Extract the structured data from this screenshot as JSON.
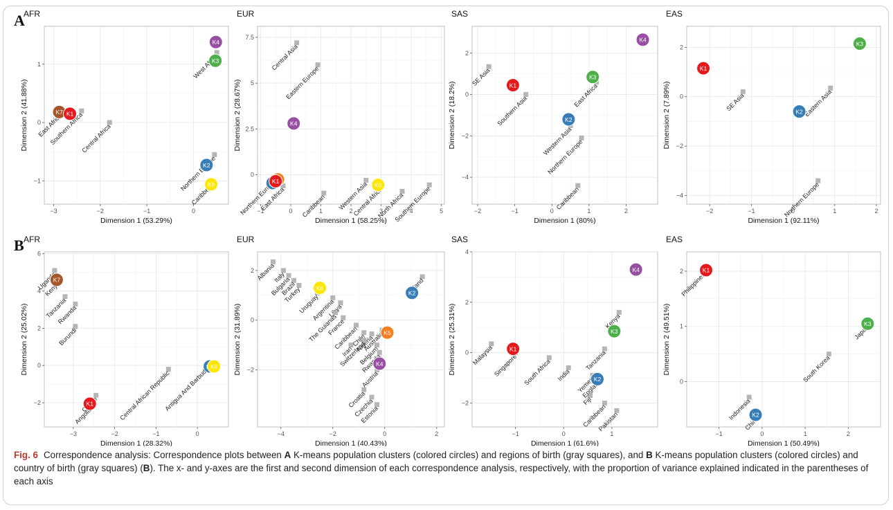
{
  "panel_letters": {
    "A": "A",
    "B": "B"
  },
  "caption": {
    "fig_label": "Fig. 6",
    "p1": "Correspondence analysis: Correspondence plots between ",
    "A": "A",
    "p2": " K-means population clusters (colored circles) and regions of birth (gray squares), and ",
    "B": "B",
    "p3": " K-means population clusters (colored circles) and country of birth (gray squares) (",
    "B2": "B",
    "p4": "). The x- and y-axes are the first and second dimension of each correspondence analysis, respectively, with the proportion of variance explained indicated in the parentheses of each axis"
  },
  "colors": {
    "gray_square": "#b5b5b5",
    "K1": "#e41a1c",
    "K2": "#377eb8",
    "K3": "#4daf4a",
    "K4": "#984ea3",
    "orange": "#f57e20",
    "yellow": "#ffe600",
    "brown": "#a65628"
  },
  "chart_data": [
    {
      "type": "scatter",
      "row": "A",
      "title": "AFR",
      "xlabel": "Dimension 1 (53.29%)",
      "ylabel": "Dimension 2 (41.88%)",
      "xlim": [
        -3.2,
        0.75
      ],
      "ylim": [
        -1.4,
        1.65
      ],
      "xticks": [
        -3,
        -2,
        -1,
        0
      ],
      "yticks": [
        -1,
        0,
        1
      ],
      "squares": [
        {
          "label": "East Africa",
          "x": -2.85,
          "y": 0.18
        },
        {
          "label": "Southern Africa",
          "x": -2.4,
          "y": 0.2
        },
        {
          "label": "Central Africa",
          "x": -1.8,
          "y": 0.0
        },
        {
          "label": "West Africa",
          "x": 0.5,
          "y": 1.2
        },
        {
          "label": "Northern Europe",
          "x": 0.45,
          "y": -0.55
        },
        {
          "label": "Caribbean",
          "x": 0.42,
          "y": -1.0
        }
      ],
      "clusters": [
        {
          "label": "K7",
          "color": "#a65628",
          "x": -2.88,
          "y": 0.18
        },
        {
          "label": "K1",
          "color": "#e41a1c",
          "x": -2.65,
          "y": 0.15
        },
        {
          "label": "K4",
          "color": "#984ea3",
          "x": 0.48,
          "y": 1.38
        },
        {
          "label": "K3",
          "color": "#4daf4a",
          "x": 0.47,
          "y": 1.06
        },
        {
          "label": "K2",
          "color": "#377eb8",
          "x": 0.28,
          "y": -0.73
        },
        {
          "label": "K6",
          "color": "#ffe600",
          "x": 0.38,
          "y": -1.06
        }
      ]
    },
    {
      "type": "scatter",
      "row": "A",
      "title": "EUR",
      "xlabel": "Dimension 1 (58.25%)",
      "ylabel": "Dimension 2 (28.67%)",
      "xlim": [
        -1.1,
        5.1
      ],
      "ylim": [
        -1.6,
        8.1
      ],
      "xticks": [
        -1,
        0,
        1,
        2,
        3,
        4,
        5
      ],
      "yticks": [
        0.0,
        2.5,
        5.0,
        7.5
      ],
      "squares": [
        {
          "label": "Central Asia",
          "x": 0.2,
          "y": 7.2
        },
        {
          "label": "Eastern Europe",
          "x": 0.9,
          "y": 6.0
        },
        {
          "label": "Northern Europe",
          "x": -0.55,
          "y": -0.2
        },
        {
          "label": "East Africa",
          "x": -0.25,
          "y": -0.6
        },
        {
          "label": "Caribbean",
          "x": 1.1,
          "y": -1.0
        },
        {
          "label": "Western Asia",
          "x": 2.5,
          "y": -0.3
        },
        {
          "label": "Central Africa",
          "x": 3.0,
          "y": -0.6
        },
        {
          "label": "North Africa",
          "x": 3.7,
          "y": -0.9
        },
        {
          "label": "Southern Europe",
          "x": 4.6,
          "y": -0.55
        }
      ],
      "clusters": [
        {
          "label": "K4",
          "color": "#984ea3",
          "x": 0.1,
          "y": 2.8
        },
        {
          "label": "K2",
          "color": "#377eb8",
          "x": -0.6,
          "y": -0.45
        },
        {
          "label": "K5",
          "color": "#f57e20",
          "x": -0.42,
          "y": -0.25
        },
        {
          "label": "K1",
          "color": "#e41a1c",
          "x": -0.5,
          "y": -0.35
        },
        {
          "label": "K6",
          "color": "#ffe600",
          "x": 2.9,
          "y": -0.55
        }
      ]
    },
    {
      "type": "scatter",
      "row": "A",
      "title": "SAS",
      "xlabel": "Dimension 1 (80%)",
      "ylabel": "Dimension 2 (18.2%)",
      "xlim": [
        -2.15,
        2.85
      ],
      "ylim": [
        -5.3,
        3.3
      ],
      "xticks": [
        -2,
        -1,
        0,
        1,
        2
      ],
      "yticks": [
        -4,
        -2,
        0,
        2
      ],
      "squares": [
        {
          "label": "SE Asia",
          "x": -1.7,
          "y": 1.35
        },
        {
          "label": "Southern Asia",
          "x": -0.7,
          "y": 0.0
        },
        {
          "label": "East Africa",
          "x": 1.2,
          "y": 0.6
        },
        {
          "label": "Western Asia",
          "x": 0.5,
          "y": -1.5
        },
        {
          "label": "Northern Europe",
          "x": 0.8,
          "y": -2.1
        },
        {
          "label": "Caribbean",
          "x": 0.7,
          "y": -4.4
        }
      ],
      "clusters": [
        {
          "label": "K4",
          "color": "#984ea3",
          "x": 2.45,
          "y": 2.65
        },
        {
          "label": "K1",
          "color": "#e41a1c",
          "x": -1.05,
          "y": 0.45
        },
        {
          "label": "K3",
          "color": "#4daf4a",
          "x": 1.1,
          "y": 0.85
        },
        {
          "label": "K2",
          "color": "#377eb8",
          "x": 0.45,
          "y": -1.2
        }
      ]
    },
    {
      "type": "scatter",
      "row": "A",
      "title": "EAS",
      "xlabel": "Dimension 1 (92.11%)",
      "ylabel": "Dimension 2 (7.89%)",
      "xlim": [
        -2.55,
        2.1
      ],
      "ylim": [
        -4.35,
        2.85
      ],
      "xticks": [
        -2,
        -1,
        0,
        1,
        2
      ],
      "yticks": [
        -4,
        -2,
        0,
        2
      ],
      "squares": [
        {
          "label": "SE Asia",
          "x": -1.2,
          "y": 0.2
        },
        {
          "label": "Eastern Asia",
          "x": 0.9,
          "y": 0.35
        },
        {
          "label": "Northern Europe",
          "x": 0.6,
          "y": -3.4
        }
      ],
      "clusters": [
        {
          "label": "K1",
          "color": "#e41a1c",
          "x": -2.15,
          "y": 1.15
        },
        {
          "label": "K3",
          "color": "#4daf4a",
          "x": 1.6,
          "y": 2.15
        },
        {
          "label": "K2",
          "color": "#377eb8",
          "x": 0.15,
          "y": -0.6
        }
      ]
    },
    {
      "type": "scatter",
      "row": "B",
      "title": "AFR",
      "xlabel": "Dimension 1 (28.32%)",
      "ylabel": "Dimension 2 (25.02%)",
      "xlim": [
        -3.7,
        0.75
      ],
      "ylim": [
        -3.3,
        6.1
      ],
      "xticks": [
        -3,
        -2,
        -1,
        0
      ],
      "yticks": [
        -2,
        0,
        2,
        4,
        6
      ],
      "squares": [
        {
          "label": "Uganda",
          "x": -3.45,
          "y": 5.1
        },
        {
          "label": "Kenya",
          "x": -3.35,
          "y": 4.6
        },
        {
          "label": "Tanzania",
          "x": -3.2,
          "y": 3.7
        },
        {
          "label": "Rwanda",
          "x": -2.95,
          "y": 3.3
        },
        {
          "label": "Burundi",
          "x": -2.95,
          "y": 2.1
        },
        {
          "label": "Central African Republic",
          "x": -0.7,
          "y": -0.2
        },
        {
          "label": "Antigua And Barbuda",
          "x": 0.25,
          "y": 0.0
        },
        {
          "label": "Congo",
          "x": -2.45,
          "y": -1.6
        },
        {
          "label": "Angola",
          "x": -2.6,
          "y": -2.2
        }
      ],
      "clusters": [
        {
          "label": "K7",
          "color": "#a65628",
          "x": -3.4,
          "y": 4.6
        },
        {
          "label": "K2",
          "color": "#377eb8",
          "x": 0.3,
          "y": -0.05
        },
        {
          "label": "K6",
          "color": "#ffe600",
          "x": 0.4,
          "y": -0.05
        },
        {
          "label": "K1",
          "color": "#e41a1c",
          "x": -2.6,
          "y": -2.05
        }
      ]
    },
    {
      "type": "scatter",
      "row": "B",
      "title": "EUR",
      "xlabel": "Dimension 1 (40.43%)",
      "ylabel": "Dimension 2 (31.89%)",
      "xlim": [
        -4.9,
        2.3
      ],
      "ylim": [
        -4.3,
        2.75
      ],
      "xticks": [
        -4,
        -2,
        0,
        2
      ],
      "yticks": [
        -2,
        0,
        2
      ],
      "squares": [
        {
          "label": "Albania",
          "x": -4.3,
          "y": 2.35
        },
        {
          "label": "Italy",
          "x": -3.9,
          "y": 2.0
        },
        {
          "label": "Bulgaria",
          "x": -3.7,
          "y": 1.8
        },
        {
          "label": "Brazil",
          "x": -3.5,
          "y": 1.6
        },
        {
          "label": "Turkey",
          "x": -3.3,
          "y": 1.4
        },
        {
          "label": "Uruguay",
          "x": -2.6,
          "y": 1.1
        },
        {
          "label": "Argentina",
          "x": -2.0,
          "y": 0.9
        },
        {
          "label": "Libya",
          "x": -1.7,
          "y": 0.7
        },
        {
          "label": "The Guianas",
          "x": -1.9,
          "y": 0.3
        },
        {
          "label": "France",
          "x": -1.6,
          "y": 0.1
        },
        {
          "label": "Caribbean",
          "x": -1.1,
          "y": -0.2
        },
        {
          "label": "Chile",
          "x": -0.8,
          "y": -0.5
        },
        {
          "label": "Nigeria",
          "x": -0.5,
          "y": -0.55
        },
        {
          "label": "Iran",
          "x": -1.3,
          "y": -1.0
        },
        {
          "label": "Switzerland",
          "x": -0.8,
          "y": -0.8
        },
        {
          "label": "Australia",
          "x": -0.1,
          "y": -0.4
        },
        {
          "label": "Belgium",
          "x": -0.3,
          "y": -1.0
        },
        {
          "label": "Rwanda",
          "x": -0.2,
          "y": -1.3
        },
        {
          "label": "Austria",
          "x": -0.3,
          "y": -2.0
        },
        {
          "label": "Croatia",
          "x": -0.8,
          "y": -2.8
        },
        {
          "label": "Czechia",
          "x": -0.5,
          "y": -3.1
        },
        {
          "label": "Estonia",
          "x": -0.3,
          "y": -3.4
        },
        {
          "label": "Finland",
          "x": 1.45,
          "y": 1.75
        }
      ],
      "clusters": [
        {
          "label": "K6",
          "color": "#ffe600",
          "x": -2.5,
          "y": 1.3
        },
        {
          "label": "K2",
          "color": "#377eb8",
          "x": 1.05,
          "y": 1.1
        },
        {
          "label": "K5",
          "color": "#f57e20",
          "x": 0.1,
          "y": -0.5
        },
        {
          "label": "K4",
          "color": "#984ea3",
          "x": -0.2,
          "y": -1.75
        }
      ]
    },
    {
      "type": "scatter",
      "row": "B",
      "title": "SAS",
      "xlabel": "Dimension 1 (61.6%)",
      "ylabel": "Dimension 2 (25.31%)",
      "xlim": [
        -1.9,
        1.95
      ],
      "ylim": [
        -2.95,
        4.0
      ],
      "xticks": [
        -1,
        0,
        1
      ],
      "yticks": [
        -2,
        0,
        2,
        4
      ],
      "squares": [
        {
          "label": "Malaysia",
          "x": -1.5,
          "y": 0.35
        },
        {
          "label": "Singapore",
          "x": -1.0,
          "y": 0.0
        },
        {
          "label": "South Africa",
          "x": -0.3,
          "y": -0.2
        },
        {
          "label": "India",
          "x": 0.1,
          "y": -0.6
        },
        {
          "label": "Kenya",
          "x": 1.15,
          "y": 1.6
        },
        {
          "label": "Tanzania",
          "x": 0.85,
          "y": 0.15
        },
        {
          "label": "Yemen",
          "x": 0.6,
          "y": -0.9
        },
        {
          "label": "Fiji",
          "x": 0.55,
          "y": -1.7
        },
        {
          "label": "England",
          "x": 0.75,
          "y": -1.0
        },
        {
          "label": "Caribbean",
          "x": 0.85,
          "y": -2.0
        },
        {
          "label": "Pakistan",
          "x": 1.1,
          "y": -2.3
        }
      ],
      "clusters": [
        {
          "label": "K4",
          "color": "#984ea3",
          "x": 1.5,
          "y": 3.3
        },
        {
          "label": "K3",
          "color": "#4daf4a",
          "x": 1.05,
          "y": 0.85
        },
        {
          "label": "K1",
          "color": "#e41a1c",
          "x": -1.05,
          "y": 0.15
        },
        {
          "label": "K2",
          "color": "#377eb8",
          "x": 0.7,
          "y": -1.05
        }
      ]
    },
    {
      "type": "scatter",
      "row": "B",
      "title": "EAS",
      "xlabel": "Dimension 1 (50.49%)",
      "ylabel": "Dimension 2 (49.51%)",
      "xlim": [
        -1.75,
        2.75
      ],
      "ylim": [
        -0.82,
        2.35
      ],
      "xticks": [
        -1,
        0,
        1,
        2
      ],
      "yticks": [
        0,
        1,
        2
      ],
      "squares": [
        {
          "label": "Philippines",
          "x": -1.35,
          "y": 2.0
        },
        {
          "label": "Japan",
          "x": 2.45,
          "y": 1.05
        },
        {
          "label": "South Korea",
          "x": 1.55,
          "y": 0.5
        },
        {
          "label": "Indonesia",
          "x": -0.3,
          "y": -0.28
        },
        {
          "label": "China",
          "x": -0.1,
          "y": -0.6
        }
      ],
      "clusters": [
        {
          "label": "K1",
          "color": "#e41a1c",
          "x": -1.3,
          "y": 2.02
        },
        {
          "label": "K3",
          "color": "#4daf4a",
          "x": 2.45,
          "y": 1.05
        },
        {
          "label": "K2",
          "color": "#377eb8",
          "x": -0.15,
          "y": -0.6
        }
      ]
    }
  ]
}
